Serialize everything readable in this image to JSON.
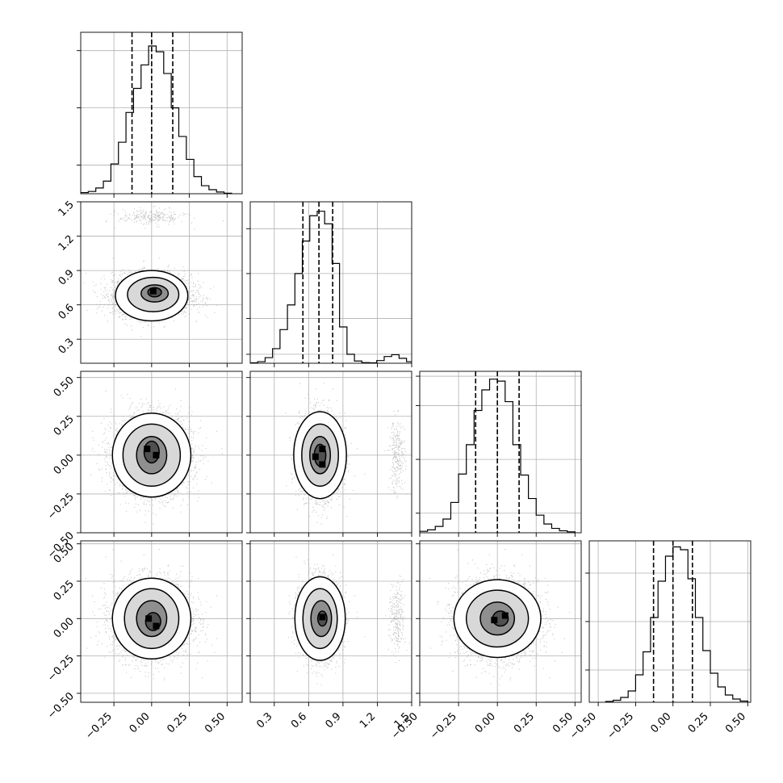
{
  "figure": {
    "type": "corner-plot",
    "background": "#ffffff",
    "grid_color": "#b0b0b0",
    "ink_color": "#000000",
    "point_color": "#9a9a9a",
    "grid": true
  },
  "chart_data": {
    "type": "corner",
    "quantiles_shown": [
      0.16,
      0.5,
      0.84
    ],
    "parameters": [
      {
        "id": "p1",
        "range": [
          -0.47,
          0.6
        ],
        "ticks": [
          -0.25,
          0.0,
          0.25,
          0.5
        ],
        "tick_labels": [
          "−0.25",
          "0.00",
          "0.25",
          "0.50"
        ],
        "quantiles": [
          -0.13,
          0.0,
          0.14
        ],
        "histogram": {
          "bin_edges": [
            -0.47,
            -0.42,
            -0.37,
            -0.32,
            -0.27,
            -0.22,
            -0.17,
            -0.12,
            -0.07,
            -0.02,
            0.03,
            0.08,
            0.13,
            0.18,
            0.23,
            0.28,
            0.33,
            0.38,
            0.43,
            0.48,
            0.53
          ],
          "counts": [
            2,
            4,
            10,
            22,
            52,
            90,
            142,
            184,
            225,
            258,
            248,
            210,
            150,
            100,
            60,
            30,
            14,
            7,
            3,
            1
          ],
          "ymax": 282,
          "hist_ticks": [
            50,
            150,
            250
          ]
        }
      },
      {
        "id": "p2",
        "range": [
          0.09,
          1.5
        ],
        "ticks": [
          0.3,
          0.6,
          0.9,
          1.2,
          1.5
        ],
        "tick_labels": [
          "0.3",
          "0.6",
          "0.9",
          "1.2",
          "1.5"
        ],
        "quantiles": [
          0.55,
          0.69,
          0.81
        ],
        "histogram": {
          "bin_edges": [
            0.09,
            0.155,
            0.22,
            0.285,
            0.35,
            0.415,
            0.48,
            0.545,
            0.61,
            0.675,
            0.74,
            0.805,
            0.87,
            0.935,
            1.0,
            1.065,
            1.13,
            1.195,
            1.26,
            1.325,
            1.39,
            1.455,
            1.52
          ],
          "counts": [
            2,
            7,
            25,
            65,
            150,
            260,
            400,
            545,
            658,
            678,
            622,
            445,
            162,
            40,
            10,
            3,
            2,
            12,
            30,
            38,
            22,
            7
          ],
          "ymax": 720,
          "hist_ticks": [
            40,
            200,
            400,
            600
          ]
        }
      },
      {
        "id": "p3",
        "range": [
          -0.5,
          0.54
        ],
        "ticks": [
          -0.5,
          -0.25,
          0.0,
          0.25,
          0.5
        ],
        "tick_labels": [
          "−0.50",
          "−0.25",
          "0.00",
          "0.25",
          "0.50"
        ],
        "quantiles": [
          -0.14,
          0.0,
          0.14
        ],
        "histogram": {
          "bin_edges": [
            -0.5,
            -0.45,
            -0.4,
            -0.35,
            -0.3,
            -0.25,
            -0.2,
            -0.15,
            -0.1,
            -0.05,
            0.0,
            0.05,
            0.1,
            0.15,
            0.2,
            0.25,
            0.3,
            0.35,
            0.4,
            0.45,
            0.5
          ],
          "counts": [
            3,
            6,
            13,
            28,
            62,
            120,
            180,
            250,
            292,
            314,
            310,
            268,
            180,
            118,
            70,
            36,
            18,
            9,
            4,
            2
          ],
          "ymax": 330,
          "hist_ticks": [
            40,
            150,
            260,
            320
          ]
        }
      },
      {
        "id": "p4",
        "range": [
          -0.56,
          0.52
        ],
        "ticks": [
          -0.5,
          -0.25,
          0.0,
          0.25,
          0.5
        ],
        "tick_labels": [
          "−0.50",
          "−0.25",
          "0.00",
          "0.25",
          "0.50"
        ],
        "quantiles": [
          -0.13,
          0.0,
          0.13
        ],
        "histogram": {
          "bin_edges": [
            -0.45,
            -0.4,
            -0.35,
            -0.3,
            -0.25,
            -0.2,
            -0.15,
            -0.1,
            -0.05,
            0.0,
            0.05,
            0.1,
            0.15,
            0.2,
            0.25,
            0.3,
            0.35,
            0.4,
            0.45,
            0.5
          ],
          "counts": [
            2,
            5,
            12,
            28,
            68,
            125,
            210,
            300,
            362,
            385,
            378,
            306,
            210,
            128,
            72,
            38,
            18,
            8,
            3
          ],
          "ymax": 400,
          "hist_ticks": [
            80,
            200,
            320
          ]
        }
      }
    ],
    "joint": [
      {
        "x": "p1",
        "y": "p2",
        "centers": [
          [
            0.0,
            0.69
          ],
          [
            0.0,
            1.37
          ]
        ],
        "sigma": [
          [
            0.13,
            0.09
          ],
          [
            0.11,
            0.035
          ]
        ],
        "counts": [
          3200,
          260
        ],
        "density_peaks": [
          [
            0.01,
            0.72
          ]
        ],
        "contours": [
          {
            "level": 1,
            "rx": 0.045,
            "ry": 0.04,
            "cx": 0.02,
            "cy": 0.71
          },
          {
            "level": 2,
            "rx": 0.09,
            "ry": 0.075,
            "cx": 0.02,
            "cy": 0.7
          },
          {
            "level": 3,
            "rx": 0.17,
            "ry": 0.15,
            "cx": 0.01,
            "cy": 0.69
          },
          {
            "level": 4,
            "rx": 0.24,
            "ry": 0.22,
            "cx": 0.0,
            "cy": 0.68
          }
        ]
      },
      {
        "x": "p1",
        "y": "p3",
        "centers": [
          [
            0.0,
            0.0
          ]
        ],
        "sigma": [
          [
            0.13,
            0.13
          ]
        ],
        "counts": [
          3400
        ],
        "density_peaks": [
          [
            -0.03,
            0.04
          ],
          [
            0.03,
            0.0
          ]
        ],
        "contours": [
          {
            "level": 1,
            "rx": 0.05,
            "ry": 0.07,
            "cx": 0.0,
            "cy": 0.02
          },
          {
            "level": 2,
            "rx": 0.1,
            "ry": 0.12,
            "cx": 0.0,
            "cy": 0.0
          },
          {
            "level": 3,
            "rx": 0.19,
            "ry": 0.2,
            "cx": 0.0,
            "cy": 0.0
          },
          {
            "level": 4,
            "rx": 0.26,
            "ry": 0.27,
            "cx": 0.0,
            "cy": 0.0
          }
        ]
      },
      {
        "x": "p2",
        "y": "p3",
        "centers": [
          [
            0.7,
            0.0
          ],
          [
            1.37,
            0.0
          ]
        ],
        "sigma": [
          [
            0.09,
            0.13
          ],
          [
            0.035,
            0.12
          ]
        ],
        "counts": [
          3200,
          260
        ],
        "density_peaks": [
          [
            0.72,
            0.04
          ],
          [
            0.66,
            -0.01
          ],
          [
            0.72,
            -0.06
          ]
        ],
        "contours": [
          {
            "level": 1,
            "rx": 0.05,
            "ry": 0.07,
            "cx": 0.7,
            "cy": 0.0
          },
          {
            "level": 2,
            "rx": 0.09,
            "ry": 0.12,
            "cx": 0.7,
            "cy": 0.0
          },
          {
            "level": 3,
            "rx": 0.16,
            "ry": 0.2,
            "cx": 0.7,
            "cy": 0.0
          },
          {
            "level": 4,
            "rx": 0.23,
            "ry": 0.28,
            "cx": 0.7,
            "cy": 0.0
          }
        ]
      },
      {
        "x": "p1",
        "y": "p4",
        "centers": [
          [
            0.0,
            0.0
          ]
        ],
        "sigma": [
          [
            0.13,
            0.13
          ]
        ],
        "counts": [
          3400
        ],
        "density_peaks": [
          [
            0.03,
            -0.05
          ],
          [
            -0.02,
            0.0
          ]
        ],
        "contours": [
          {
            "level": 1,
            "rx": 0.05,
            "ry": 0.06,
            "cx": 0.01,
            "cy": -0.02
          },
          {
            "level": 2,
            "rx": 0.1,
            "ry": 0.12,
            "cx": 0.0,
            "cy": 0.0
          },
          {
            "level": 3,
            "rx": 0.18,
            "ry": 0.2,
            "cx": 0.0,
            "cy": 0.0
          },
          {
            "level": 4,
            "rx": 0.26,
            "ry": 0.27,
            "cx": 0.0,
            "cy": 0.0
          }
        ]
      },
      {
        "x": "p2",
        "y": "p4",
        "centers": [
          [
            0.7,
            0.0
          ],
          [
            1.37,
            0.0
          ]
        ],
        "sigma": [
          [
            0.09,
            0.13
          ],
          [
            0.035,
            0.12
          ]
        ],
        "counts": [
          3200,
          260
        ],
        "density_peaks": [
          [
            0.72,
            0.01
          ]
        ],
        "contours": [
          {
            "level": 1,
            "rx": 0.04,
            "ry": 0.05,
            "cx": 0.72,
            "cy": 0.0
          },
          {
            "level": 2,
            "rx": 0.09,
            "ry": 0.12,
            "cx": 0.71,
            "cy": 0.0
          },
          {
            "level": 3,
            "rx": 0.15,
            "ry": 0.2,
            "cx": 0.7,
            "cy": 0.0
          },
          {
            "level": 4,
            "rx": 0.22,
            "ry": 0.28,
            "cx": 0.7,
            "cy": 0.0
          }
        ]
      },
      {
        "x": "p3",
        "y": "p4",
        "centers": [
          [
            0.0,
            0.0
          ]
        ],
        "sigma": [
          [
            0.13,
            0.13
          ]
        ],
        "counts": [
          3400
        ],
        "density_peaks": [
          [
            0.05,
            0.02
          ],
          [
            -0.02,
            -0.01
          ]
        ],
        "contours": [
          {
            "level": 1,
            "rx": 0.05,
            "ry": 0.05,
            "cx": 0.02,
            "cy": 0.0
          },
          {
            "level": 2,
            "rx": 0.11,
            "ry": 0.11,
            "cx": 0.0,
            "cy": 0.0
          },
          {
            "level": 3,
            "rx": 0.2,
            "ry": 0.19,
            "cx": 0.0,
            "cy": 0.0
          },
          {
            "level": 4,
            "rx": 0.28,
            "ry": 0.26,
            "cx": 0.0,
            "cy": 0.0
          }
        ]
      }
    ]
  }
}
